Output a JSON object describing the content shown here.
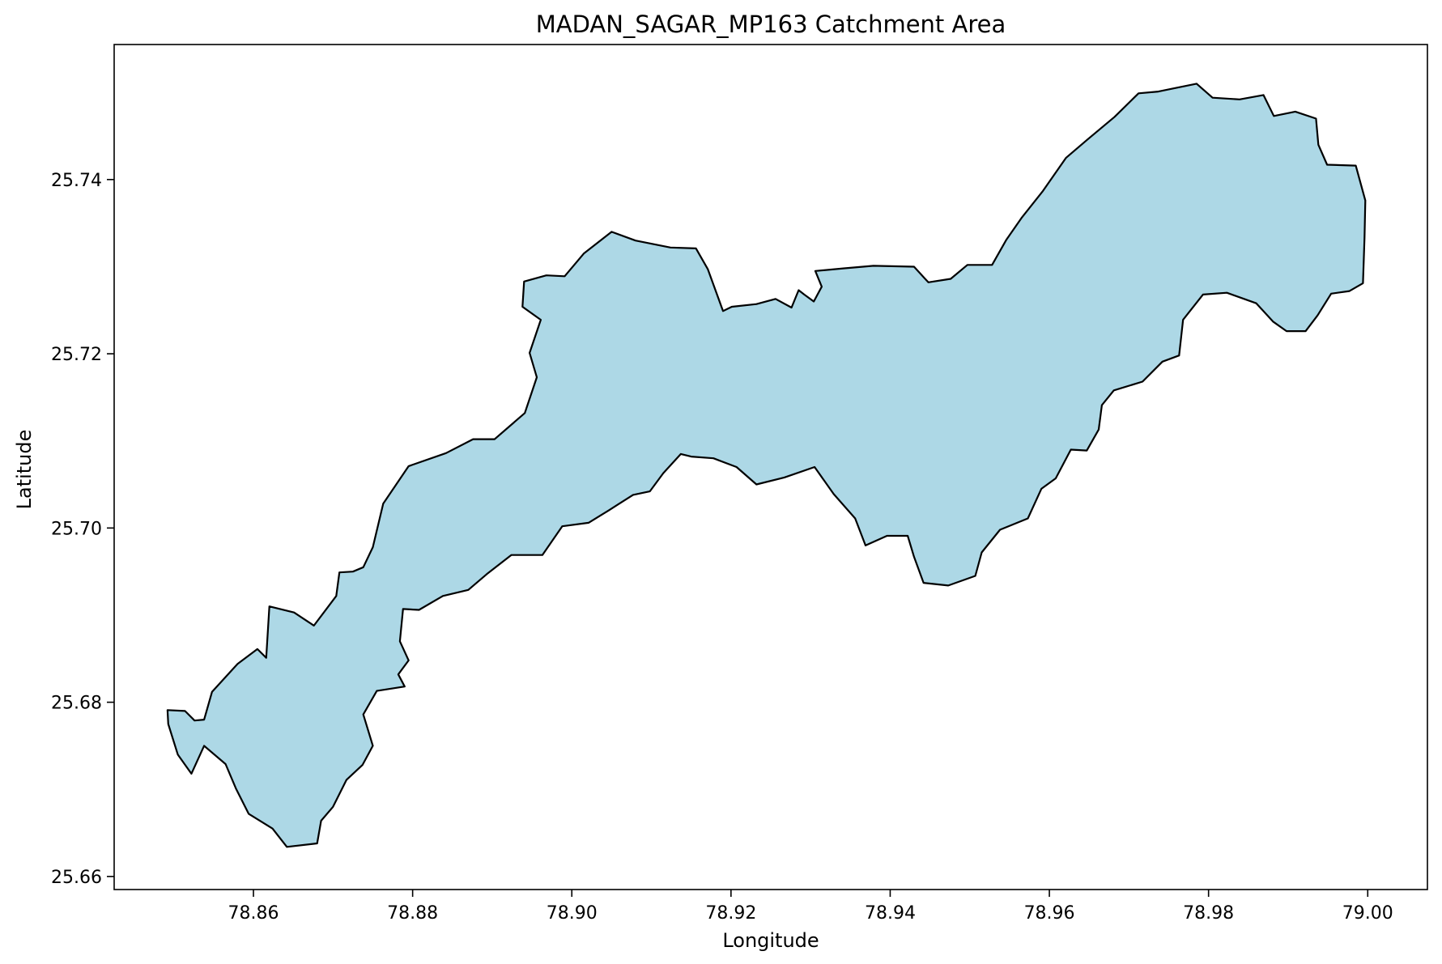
{
  "chart_data": {
    "type": "map",
    "title": "MADAN_SAGAR_MP163 Catchment Area",
    "xlabel": "Longitude",
    "ylabel": "Latitude",
    "xlim": [
      78.8425,
      79.0075
    ],
    "ylim": [
      25.6585,
      25.7555
    ],
    "x_ticks": [
      78.86,
      78.88,
      78.9,
      78.92,
      78.94,
      78.96,
      78.98,
      79.0
    ],
    "x_tick_labels": [
      "78.86",
      "78.88",
      "78.90",
      "78.92",
      "78.94",
      "78.96",
      "78.98",
      "79.00"
    ],
    "y_ticks": [
      25.66,
      25.68,
      25.7,
      25.72,
      25.74
    ],
    "y_tick_labels": [
      "25.66",
      "25.68",
      "25.70",
      "25.72",
      "25.74"
    ],
    "grid": false,
    "legend": "none",
    "polygon_fill": "#add8e6",
    "polygon_edge": "#000000",
    "polygon": [
      [
        78.8493,
        25.6775
      ],
      [
        78.8492,
        25.6791
      ],
      [
        78.8514,
        25.679
      ],
      [
        78.8526,
        25.6779
      ],
      [
        78.8538,
        25.678
      ],
      [
        78.8548,
        25.6812
      ],
      [
        78.858,
        25.6844
      ],
      [
        78.8605,
        25.6861
      ],
      [
        78.8616,
        25.6851
      ],
      [
        78.862,
        25.691
      ],
      [
        78.8651,
        25.6903
      ],
      [
        78.8676,
        25.6888
      ],
      [
        78.8704,
        25.6922
      ],
      [
        78.8708,
        25.6949
      ],
      [
        78.8725,
        25.695
      ],
      [
        78.8738,
        25.6955
      ],
      [
        78.875,
        25.6978
      ],
      [
        78.8763,
        25.7028
      ],
      [
        78.8795,
        25.7071
      ],
      [
        78.8842,
        25.7086
      ],
      [
        78.8876,
        25.7102
      ],
      [
        78.8903,
        25.7102
      ],
      [
        78.8941,
        25.7132
      ],
      [
        78.8956,
        25.7173
      ],
      [
        78.8947,
        25.7201
      ],
      [
        78.8961,
        25.7239
      ],
      [
        78.8938,
        25.7254
      ],
      [
        78.894,
        25.7283
      ],
      [
        78.8968,
        25.729
      ],
      [
        78.8991,
        25.7289
      ],
      [
        78.9015,
        25.7315
      ],
      [
        78.905,
        25.734
      ],
      [
        78.908,
        25.733
      ],
      [
        78.9124,
        25.7322
      ],
      [
        78.9156,
        25.7321
      ],
      [
        78.9171,
        25.7297
      ],
      [
        78.919,
        25.7249
      ],
      [
        78.9201,
        25.7254
      ],
      [
        78.9232,
        25.7257
      ],
      [
        78.9256,
        25.7263
      ],
      [
        78.9276,
        25.7253
      ],
      [
        78.9285,
        25.7273
      ],
      [
        78.9292,
        25.7268
      ],
      [
        78.9304,
        25.726
      ],
      [
        78.9314,
        25.7277
      ],
      [
        78.9306,
        25.7295
      ],
      [
        78.9341,
        25.7298
      ],
      [
        78.9379,
        25.7301
      ],
      [
        78.943,
        25.73
      ],
      [
        78.9448,
        25.7282
      ],
      [
        78.9476,
        25.7286
      ],
      [
        78.9497,
        25.7302
      ],
      [
        78.9528,
        25.7302
      ],
      [
        78.9546,
        25.7331
      ],
      [
        78.9565,
        25.7356
      ],
      [
        78.9592,
        25.7387
      ],
      [
        78.9621,
        25.7425
      ],
      [
        78.9648,
        25.7446
      ],
      [
        78.9682,
        25.7472
      ],
      [
        78.9712,
        25.7499
      ],
      [
        78.9737,
        25.7501
      ],
      [
        78.9758,
        25.7505
      ],
      [
        78.9785,
        25.751
      ],
      [
        78.9805,
        25.7494
      ],
      [
        78.9839,
        25.7492
      ],
      [
        78.9869,
        25.7497
      ],
      [
        78.9882,
        25.7473
      ],
      [
        78.9909,
        25.7478
      ],
      [
        78.9935,
        25.747
      ],
      [
        78.9938,
        25.744
      ],
      [
        78.9949,
        25.7417
      ],
      [
        78.9985,
        25.7416
      ],
      [
        78.9997,
        25.7376
      ],
      [
        78.9996,
        25.7333
      ],
      [
        78.9994,
        25.7281
      ],
      [
        78.9977,
        25.7272
      ],
      [
        78.9954,
        25.7269
      ],
      [
        78.9937,
        25.7244
      ],
      [
        78.9922,
        25.7226
      ],
      [
        78.9898,
        25.7226
      ],
      [
        78.9881,
        25.7237
      ],
      [
        78.986,
        25.7258
      ],
      [
        78.9823,
        25.727
      ],
      [
        78.9793,
        25.7268
      ],
      [
        78.9768,
        25.7239
      ],
      [
        78.9763,
        25.7198
      ],
      [
        78.9742,
        25.7191
      ],
      [
        78.9717,
        25.7168
      ],
      [
        78.9681,
        25.7158
      ],
      [
        78.9666,
        25.7141
      ],
      [
        78.9662,
        25.7113
      ],
      [
        78.9647,
        25.7089
      ],
      [
        78.9627,
        25.709
      ],
      [
        78.9608,
        25.7057
      ],
      [
        78.959,
        25.7045
      ],
      [
        78.9573,
        25.7011
      ],
      [
        78.9538,
        25.6998
      ],
      [
        78.9515,
        25.6972
      ],
      [
        78.9507,
        25.6945
      ],
      [
        78.9473,
        25.6934
      ],
      [
        78.9442,
        25.6937
      ],
      [
        78.943,
        25.6967
      ],
      [
        78.9422,
        25.6991
      ],
      [
        78.9396,
        25.6991
      ],
      [
        78.9369,
        25.698
      ],
      [
        78.9356,
        25.7011
      ],
      [
        78.9329,
        25.7039
      ],
      [
        78.9305,
        25.707
      ],
      [
        78.9267,
        25.7058
      ],
      [
        78.9232,
        25.705
      ],
      [
        78.9207,
        25.707
      ],
      [
        78.9178,
        25.708
      ],
      [
        78.915,
        25.7082
      ],
      [
        78.9137,
        25.7085
      ],
      [
        78.9115,
        25.7063
      ],
      [
        78.9098,
        25.7042
      ],
      [
        78.9077,
        25.7038
      ],
      [
        78.9046,
        25.702
      ],
      [
        78.9021,
        25.7006
      ],
      [
        78.8988,
        25.7002
      ],
      [
        78.8963,
        25.6969
      ],
      [
        78.8924,
        25.6969
      ],
      [
        78.8893,
        25.6947
      ],
      [
        78.887,
        25.6929
      ],
      [
        78.8838,
        25.6922
      ],
      [
        78.8808,
        25.6906
      ],
      [
        78.8788,
        25.6907
      ],
      [
        78.8784,
        25.687
      ],
      [
        78.8795,
        25.6848
      ],
      [
        78.8782,
        25.6832
      ],
      [
        78.879,
        25.6818
      ],
      [
        78.8755,
        25.6813
      ],
      [
        78.8738,
        25.6786
      ],
      [
        78.875,
        25.675
      ],
      [
        78.8737,
        25.6728
      ],
      [
        78.8717,
        25.6711
      ],
      [
        78.87,
        25.668
      ],
      [
        78.8685,
        25.6664
      ],
      [
        78.868,
        25.6638
      ],
      [
        78.8642,
        25.6634
      ],
      [
        78.8624,
        25.6655
      ],
      [
        78.8594,
        25.6672
      ],
      [
        78.8578,
        25.6701
      ],
      [
        78.8565,
        25.6729
      ],
      [
        78.8538,
        25.675
      ],
      [
        78.8522,
        25.6718
      ],
      [
        78.8505,
        25.674
      ],
      [
        78.8493,
        25.6775
      ]
    ]
  }
}
